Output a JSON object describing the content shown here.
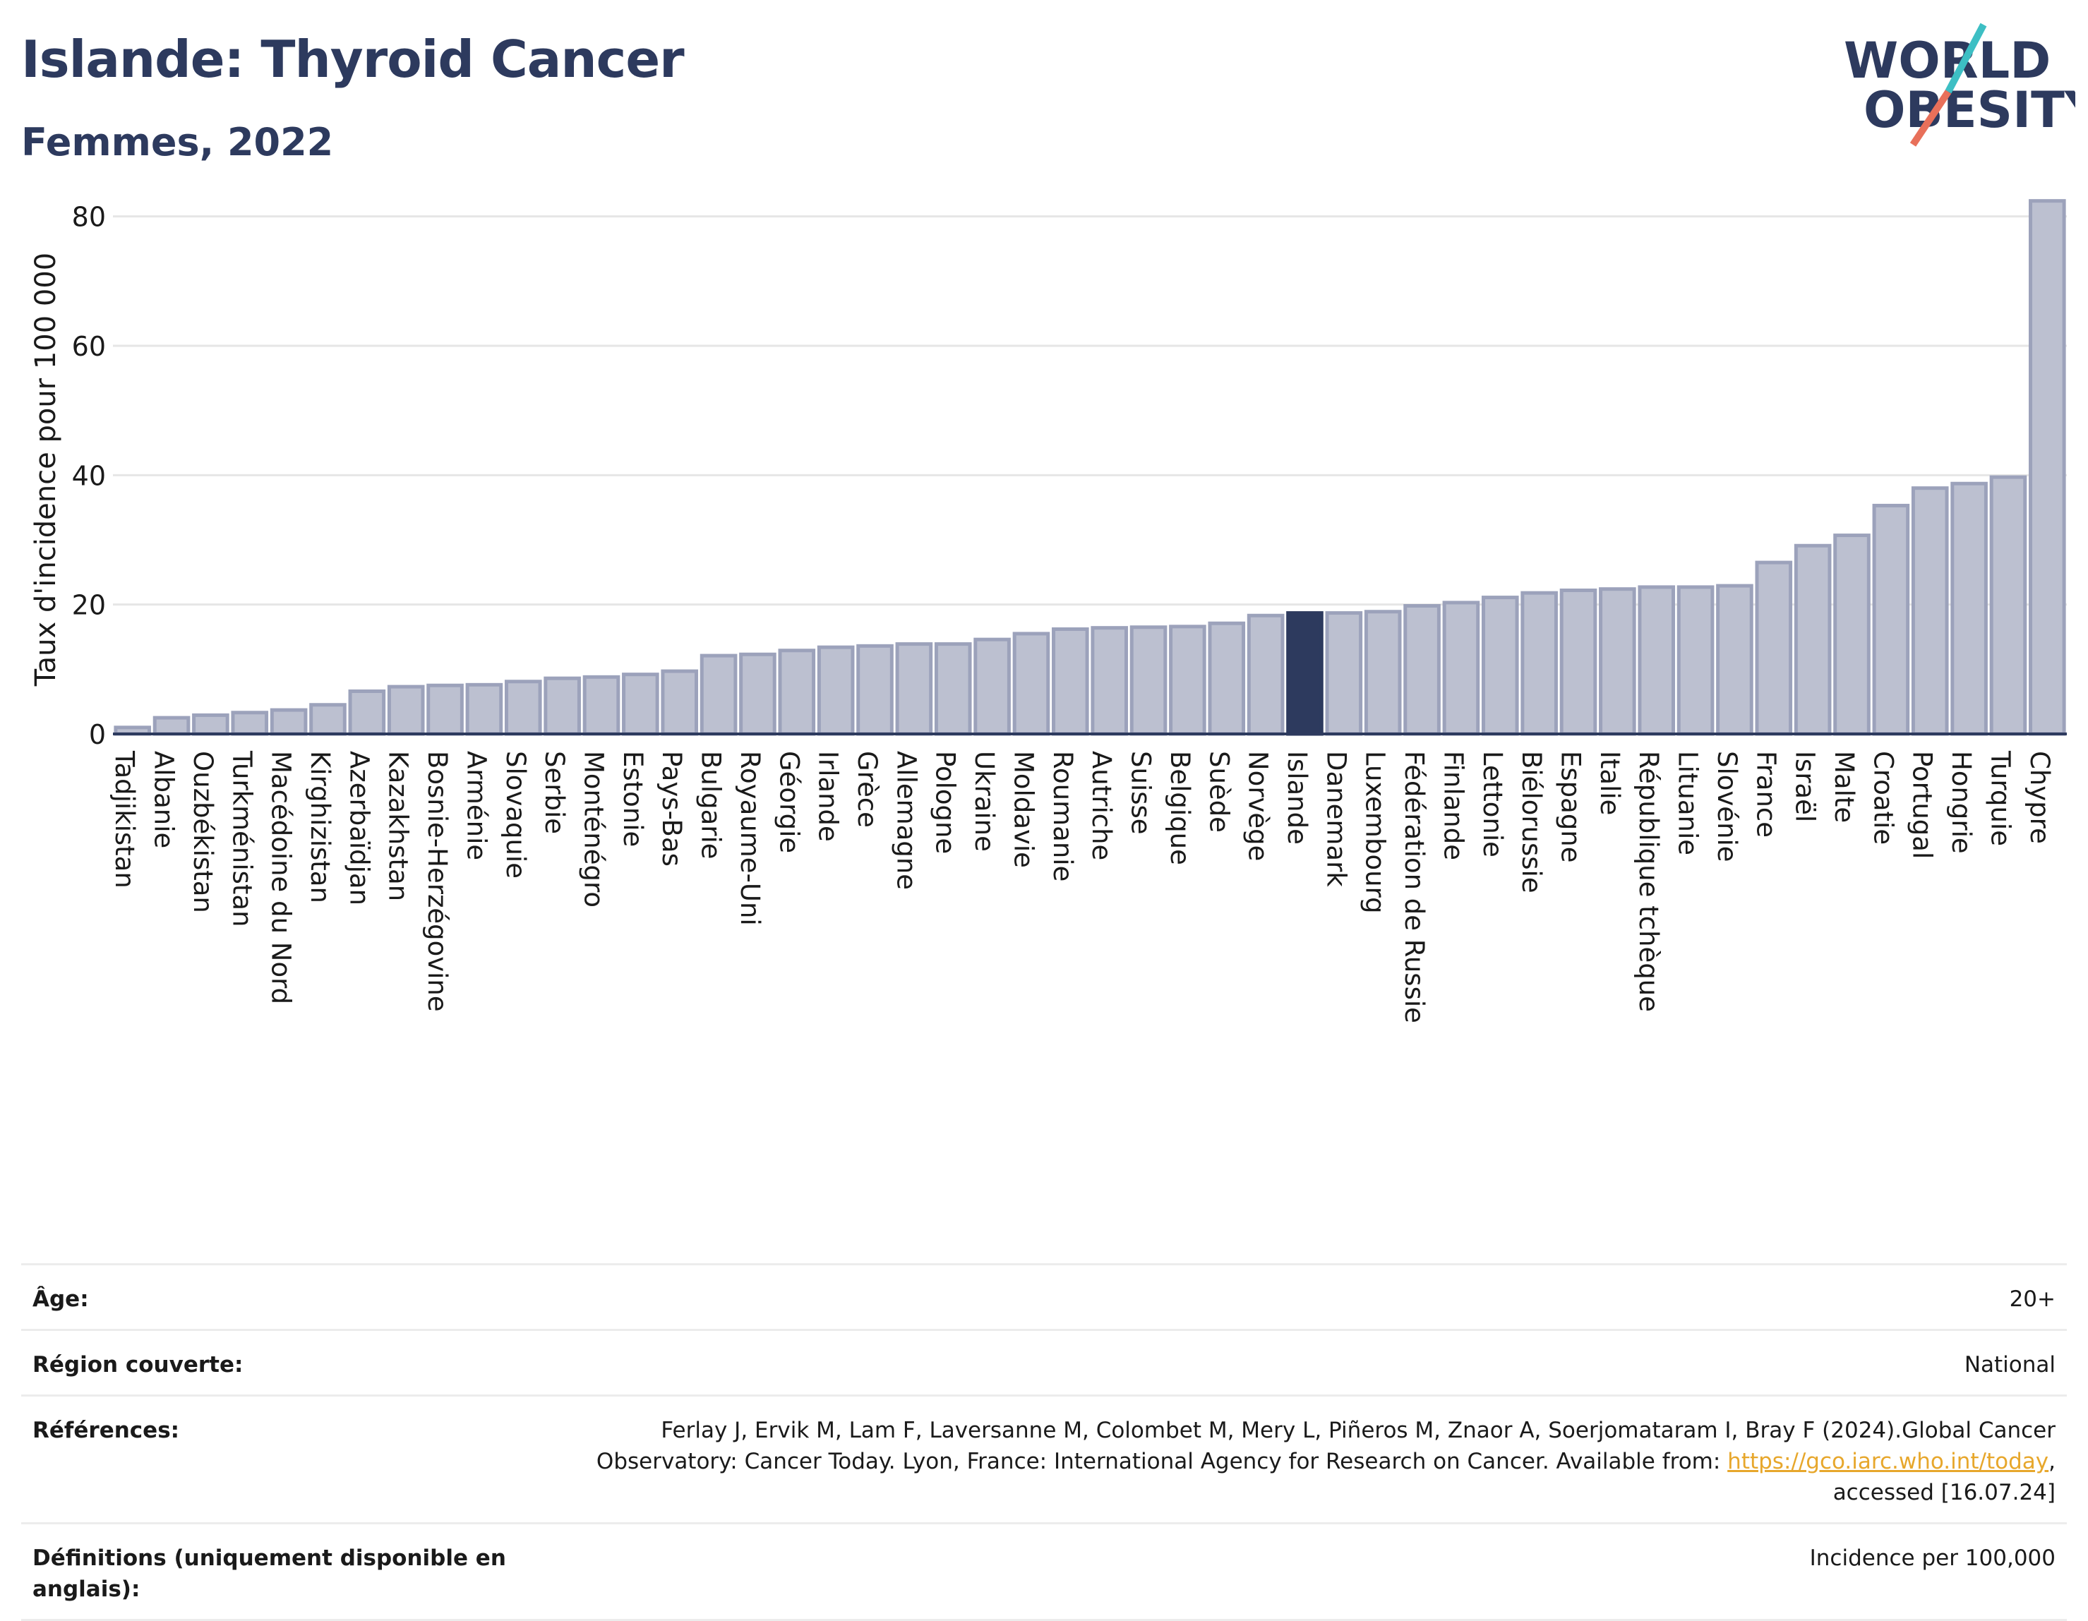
{
  "header": {
    "title": "Islande: Thyroid Cancer",
    "subtitle": "Femmes, 2022",
    "logo_line1": "WORLD",
    "logo_line2": "OBESITY"
  },
  "colors": {
    "bar": "#bcc0d0",
    "bar_border": "#9ca2bb",
    "highlight": "#2d3a5e",
    "title": "#2d3a5e",
    "link": "#e7a72c",
    "logo_accent_teal": "#3dbfc4",
    "logo_accent_coral": "#e8705a"
  },
  "chart_data": {
    "type": "bar",
    "ylabel": "Taux d'incidence pour 100 000",
    "xlabel": "",
    "ylim": [
      0,
      84
    ],
    "yticks": [
      0,
      20,
      40,
      60,
      80
    ],
    "grid": true,
    "highlight": "Islande",
    "categories": [
      "Tadjikistan",
      "Albanie",
      "Ouzbékistan",
      "Turkménistan",
      "Macédoine du Nord",
      "Kirghizistan",
      "Azerbaïdjan",
      "Kazakhstan",
      "Bosnie-Herzégovine",
      "Arménie",
      "Slovaquie",
      "Serbie",
      "Monténégro",
      "Estonie",
      "Pays-Bas",
      "Bulgarie",
      "Royaume-Uni",
      "Géorgie",
      "Irlande",
      "Grèce",
      "Allemagne",
      "Pologne",
      "Ukraine",
      "Moldavie",
      "Roumanie",
      "Autriche",
      "Suisse",
      "Belgique",
      "Suède",
      "Norvège",
      "Islande",
      "Danemark",
      "Luxembourg",
      "Fédération de Russie",
      "Finlande",
      "Lettonie",
      "Biélorussie",
      "Espagne",
      "Italie",
      "République tchèque",
      "Lituanie",
      "Slovénie",
      "France",
      "Israël",
      "Malte",
      "Croatie",
      "Portugal",
      "Hongrie",
      "Turquie",
      "Chypre"
    ],
    "values": [
      1.0,
      2.5,
      2.9,
      3.3,
      3.7,
      4.5,
      6.6,
      7.3,
      7.5,
      7.6,
      8.1,
      8.6,
      8.8,
      9.2,
      9.7,
      12.1,
      12.3,
      12.9,
      13.4,
      13.6,
      13.9,
      13.9,
      14.6,
      15.5,
      16.2,
      16.4,
      16.5,
      16.6,
      17.1,
      18.3,
      18.7,
      18.7,
      18.9,
      19.8,
      20.3,
      21.1,
      21.8,
      22.2,
      22.4,
      22.7,
      22.7,
      22.9,
      26.5,
      29.1,
      30.7,
      35.3,
      38.0,
      38.7,
      39.7,
      82.4
    ]
  },
  "info": {
    "age_label": "Âge:",
    "age_value": "20+",
    "region_label": "Région couverte:",
    "region_value": "National",
    "refs_label": "Références:",
    "refs_text_before": "Ferlay J, Ervik M, Lam F, Laversanne M, Colombet M, Mery L, Piñeros M, Znaor A, Soerjomataram I, Bray F (2024).Global Cancer Observatory: Cancer Today. Lyon, France: International Agency for Research on Cancer. Available from: ",
    "refs_link": "https://gco.iarc.who.int/today",
    "refs_text_after": ", accessed [16.07.24]",
    "defs_label": "Définitions (uniquement disponible en anglais):",
    "defs_value": "Incidence per 100,000"
  }
}
